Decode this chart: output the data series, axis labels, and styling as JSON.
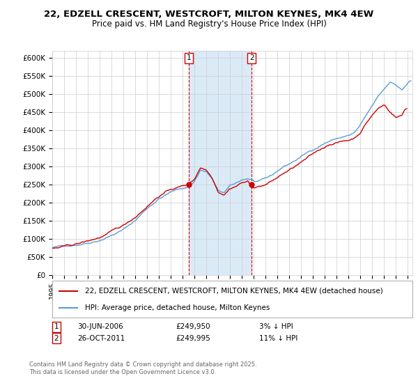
{
  "title_line1": "22, EDZELL CRESCENT, WESTCROFT, MILTON KEYNES, MK4 4EW",
  "title_line2": "Price paid vs. HM Land Registry's House Price Index (HPI)",
  "ylim": [
    0,
    620000
  ],
  "yticks": [
    0,
    50000,
    100000,
    150000,
    200000,
    250000,
    300000,
    350000,
    400000,
    450000,
    500000,
    550000,
    600000
  ],
  "ytick_labels": [
    "£0",
    "£50K",
    "£100K",
    "£150K",
    "£200K",
    "£250K",
    "£300K",
    "£350K",
    "£400K",
    "£450K",
    "£500K",
    "£550K",
    "£600K"
  ],
  "marker1_date": 2006.5,
  "marker1_price": 249950,
  "marker2_date": 2011.82,
  "marker2_price": 249995,
  "legend_line1": "22, EDZELL CRESCENT, WESTCROFT, MILTON KEYNES, MK4 4EW (detached house)",
  "legend_line2": "HPI: Average price, detached house, Milton Keynes",
  "copyright": "Contains HM Land Registry data © Crown copyright and database right 2025.\nThis data is licensed under the Open Government Licence v3.0.",
  "hpi_color": "#5b9bd5",
  "price_color": "#cc0000",
  "marker_box_color": "#cc0000",
  "shaded_color": "#dbeaf7",
  "background_color": "#ffffff",
  "grid_color": "#cccccc"
}
